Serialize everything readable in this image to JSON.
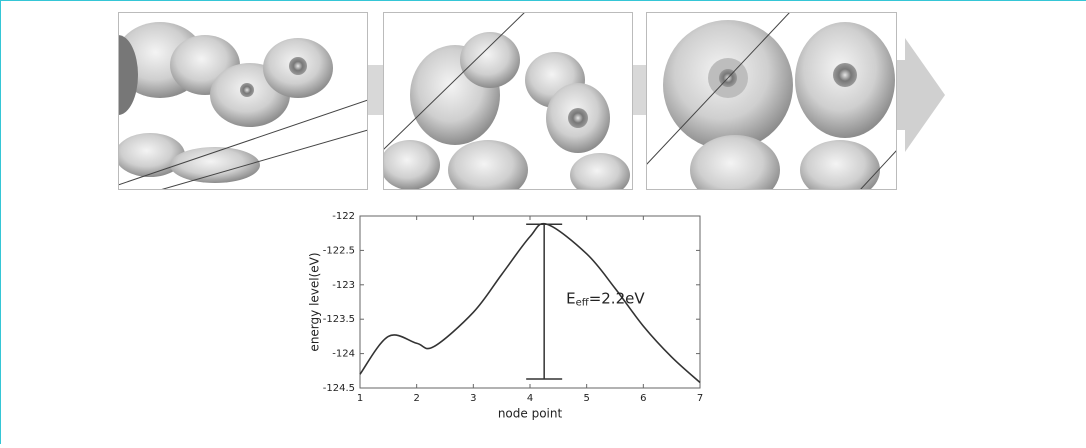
{
  "chart_data": {
    "type": "line",
    "x": [
      1,
      1.5,
      2,
      2.3,
      3,
      3.5,
      4,
      4.3,
      5,
      5.5,
      6,
      6.5,
      7
    ],
    "series": [
      {
        "color": "#333333",
        "values": [
          -124.3,
          -123.75,
          -123.85,
          -123.9,
          -123.4,
          -122.85,
          -122.3,
          -122.12,
          -122.55,
          -123.05,
          -123.6,
          -124.05,
          -124.42
        ]
      }
    ],
    "barrier": {
      "x": 4.25,
      "top": -122.12,
      "bottom": -124.37
    },
    "annotation": {
      "symbol": "E",
      "subscript": "eff",
      "text": "=2.2eV"
    },
    "xlabel": "node point",
    "ylabel": "energy level(eV)",
    "xlim": [
      1,
      7
    ],
    "ylim": [
      -124.5,
      -122
    ],
    "xticks": [
      1,
      2,
      3,
      4,
      5,
      6,
      7
    ],
    "yticks": [
      -122,
      -122.5,
      -123,
      -123.5,
      -124,
      -124.5
    ]
  }
}
